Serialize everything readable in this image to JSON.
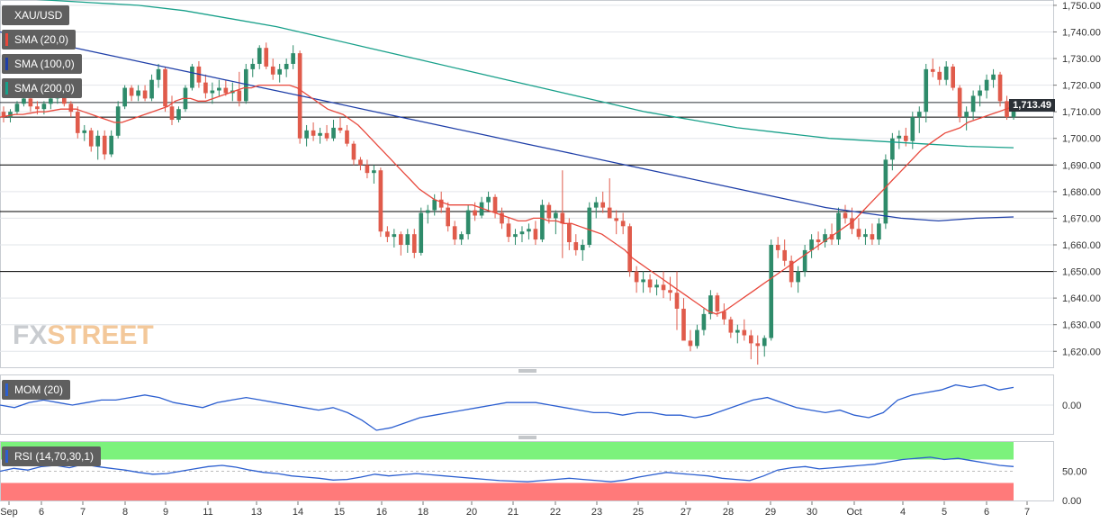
{
  "instrument": "XAU/USD",
  "overlay_labels": [
    {
      "key": "price",
      "label": "XAU/USD",
      "color": "#5f5f5f"
    },
    {
      "key": "sma20",
      "label": "SMA (20,0)",
      "color": "#e8483c"
    },
    {
      "key": "sma100",
      "label": "SMA (100,0)",
      "color": "#1f3fa8"
    },
    {
      "key": "sma200",
      "label": "SMA (200,0)",
      "color": "#18a08a"
    }
  ],
  "mom_label": "MOM (20)",
  "rsi_label": "RSI (14,70,30,1)",
  "last_price": "1,713.49",
  "watermark": {
    "part1": "FX",
    "part2": "STREET"
  },
  "colors": {
    "bull": "#2e8b6a",
    "bear": "#e05b4b",
    "sma20": "#e8483c",
    "sma100": "#1f3fa8",
    "sma200": "#18a08a",
    "mom": "#2c5fd0",
    "rsi": "#2c5fd0",
    "rsi_overbought": "#7cf27c",
    "rsi_oversold": "#ff7a7a",
    "grid": "#e2e5ea"
  },
  "chart_data": {
    "type": "candlestick",
    "y_axis_ticks": [
      1750,
      1740,
      1730,
      1720,
      1710,
      1700,
      1690,
      1680,
      1670,
      1660,
      1650,
      1640,
      1630,
      1620
    ],
    "y_tick_labels": [
      "1,750.00",
      "1,740.00",
      "1,730.00",
      "1,720.00",
      "1,710.00",
      "1,700.00",
      "1,690.00",
      "1,680.00",
      "1,670.00",
      "1,660.00",
      "1,650.00",
      "1,640.00",
      "1,630.00",
      "1,620.00"
    ],
    "ylim": [
      1614,
      1752
    ],
    "horizontal_levels": [
      1713.49,
      1708,
      1690,
      1672.5,
      1650
    ],
    "x_labels": [
      "Sep",
      "6",
      "7",
      "8",
      "9",
      "11",
      "13",
      "14",
      "15",
      "16",
      "18",
      "20",
      "21",
      "22",
      "23",
      "25",
      "27",
      "28",
      "29",
      "30",
      "Oct",
      "4",
      "5",
      "6",
      "7"
    ],
    "candles_ohlc": [
      [
        1710,
        1712,
        1706,
        1708
      ],
      [
        1708,
        1711,
        1706,
        1710
      ],
      [
        1710,
        1714,
        1709,
        1713
      ],
      [
        1713,
        1716,
        1712,
        1715
      ],
      [
        1715,
        1716,
        1710,
        1712
      ],
      [
        1712,
        1714,
        1709,
        1711
      ],
      [
        1711,
        1714,
        1709,
        1713
      ],
      [
        1713,
        1716,
        1711,
        1715
      ],
      [
        1715,
        1718,
        1713,
        1716
      ],
      [
        1716,
        1717,
        1712,
        1713
      ],
      [
        1713,
        1714,
        1708,
        1710
      ],
      [
        1710,
        1712,
        1700,
        1702
      ],
      [
        1702,
        1705,
        1699,
        1703
      ],
      [
        1703,
        1704,
        1695,
        1697
      ],
      [
        1697,
        1703,
        1692,
        1701
      ],
      [
        1701,
        1703,
        1692,
        1694
      ],
      [
        1694,
        1703,
        1693,
        1701
      ],
      [
        1701,
        1714,
        1700,
        1712
      ],
      [
        1712,
        1720,
        1711,
        1719
      ],
      [
        1719,
        1720,
        1714,
        1716
      ],
      [
        1716,
        1720,
        1714,
        1718
      ],
      [
        1718,
        1720,
        1714,
        1715
      ],
      [
        1715,
        1724,
        1714,
        1722
      ],
      [
        1722,
        1728,
        1719,
        1726
      ],
      [
        1726,
        1727,
        1710,
        1712
      ],
      [
        1712,
        1716,
        1705,
        1707
      ],
      [
        1707,
        1712,
        1706,
        1711
      ],
      [
        1711,
        1720,
        1710,
        1719
      ],
      [
        1719,
        1728,
        1718,
        1727
      ],
      [
        1727,
        1729,
        1719,
        1721
      ],
      [
        1721,
        1724,
        1715,
        1717
      ],
      [
        1717,
        1721,
        1713,
        1718
      ],
      [
        1718,
        1722,
        1716,
        1719
      ],
      [
        1719,
        1722,
        1716,
        1717
      ],
      [
        1717,
        1721,
        1714,
        1718
      ],
      [
        1718,
        1725,
        1712,
        1714
      ],
      [
        1714,
        1728,
        1713,
        1726
      ],
      [
        1726,
        1730,
        1723,
        1728
      ],
      [
        1728,
        1735,
        1726,
        1734
      ],
      [
        1734,
        1736,
        1726,
        1727
      ],
      [
        1727,
        1730,
        1722,
        1724
      ],
      [
        1724,
        1728,
        1721,
        1726
      ],
      [
        1726,
        1730,
        1723,
        1728
      ],
      [
        1728,
        1735,
        1726,
        1732
      ],
      [
        1732,
        1733,
        1698,
        1700
      ],
      [
        1700,
        1705,
        1697,
        1703
      ],
      [
        1703,
        1706,
        1699,
        1701
      ],
      [
        1701,
        1704,
        1698,
        1702
      ],
      [
        1702,
        1705,
        1699,
        1700
      ],
      [
        1700,
        1707,
        1699,
        1704
      ],
      [
        1704,
        1708,
        1702,
        1703
      ],
      [
        1703,
        1705,
        1697,
        1698
      ],
      [
        1698,
        1699,
        1690,
        1692
      ],
      [
        1692,
        1693,
        1688,
        1690
      ],
      [
        1690,
        1692,
        1685,
        1687
      ],
      [
        1687,
        1690,
        1683,
        1688
      ],
      [
        1688,
        1689,
        1663,
        1665
      ],
      [
        1665,
        1667,
        1661,
        1663
      ],
      [
        1663,
        1666,
        1659,
        1664
      ],
      [
        1664,
        1665,
        1656,
        1660
      ],
      [
        1660,
        1666,
        1657,
        1664
      ],
      [
        1664,
        1666,
        1655,
        1657
      ],
      [
        1657,
        1674,
        1656,
        1672
      ],
      [
        1672,
        1675,
        1668,
        1673
      ],
      [
        1673,
        1679,
        1671,
        1677
      ],
      [
        1677,
        1680,
        1672,
        1674
      ],
      [
        1674,
        1676,
        1665,
        1667
      ],
      [
        1667,
        1669,
        1660,
        1662
      ],
      [
        1662,
        1665,
        1660,
        1664
      ],
      [
        1664,
        1675,
        1662,
        1673
      ],
      [
        1673,
        1676,
        1669,
        1671
      ],
      [
        1671,
        1678,
        1670,
        1676
      ],
      [
        1676,
        1680,
        1673,
        1678
      ],
      [
        1678,
        1679,
        1670,
        1672
      ],
      [
        1672,
        1674,
        1666,
        1668
      ],
      [
        1668,
        1670,
        1661,
        1663
      ],
      [
        1663,
        1666,
        1660,
        1664
      ],
      [
        1664,
        1667,
        1661,
        1665
      ],
      [
        1665,
        1668,
        1662,
        1666
      ],
      [
        1666,
        1669,
        1660,
        1662
      ],
      [
        1662,
        1677,
        1661,
        1675
      ],
      [
        1675,
        1676,
        1668,
        1670
      ],
      [
        1670,
        1673,
        1664,
        1672
      ],
      [
        1672,
        1688,
        1655,
        1668
      ],
      [
        1668,
        1670,
        1658,
        1661
      ],
      [
        1661,
        1664,
        1656,
        1658
      ],
      [
        1658,
        1662,
        1654,
        1660
      ],
      [
        1660,
        1676,
        1659,
        1674
      ],
      [
        1674,
        1678,
        1670,
        1676
      ],
      [
        1676,
        1680,
        1672,
        1674
      ],
      [
        1674,
        1685,
        1672,
        1670
      ],
      [
        1670,
        1673,
        1664,
        1669
      ],
      [
        1669,
        1672,
        1664,
        1667
      ],
      [
        1667,
        1668,
        1648,
        1650
      ],
      [
        1650,
        1652,
        1642,
        1646
      ],
      [
        1646,
        1650,
        1642,
        1647
      ],
      [
        1647,
        1649,
        1642,
        1644
      ],
      [
        1644,
        1647,
        1641,
        1645
      ],
      [
        1645,
        1650,
        1640,
        1643
      ],
      [
        1643,
        1648,
        1639,
        1642
      ],
      [
        1642,
        1650,
        1628,
        1636
      ],
      [
        1636,
        1640,
        1628,
        1624
      ],
      [
        1624,
        1628,
        1620,
        1622
      ],
      [
        1622,
        1630,
        1621,
        1628
      ],
      [
        1628,
        1636,
        1626,
        1634
      ],
      [
        1634,
        1643,
        1632,
        1641
      ],
      [
        1641,
        1642,
        1633,
        1635
      ],
      [
        1635,
        1638,
        1630,
        1632
      ],
      [
        1632,
        1633,
        1625,
        1627
      ],
      [
        1627,
        1630,
        1623,
        1628
      ],
      [
        1628,
        1632,
        1624,
        1626
      ],
      [
        1626,
        1628,
        1617,
        1623
      ],
      [
        1623,
        1626,
        1615,
        1622
      ],
      [
        1622,
        1626,
        1618,
        1625
      ],
      [
        1625,
        1662,
        1624,
        1660
      ],
      [
        1660,
        1663,
        1655,
        1658
      ],
      [
        1658,
        1662,
        1652,
        1654
      ],
      [
        1654,
        1656,
        1644,
        1646
      ],
      [
        1646,
        1652,
        1642,
        1650
      ],
      [
        1650,
        1660,
        1648,
        1658
      ],
      [
        1658,
        1664,
        1655,
        1662
      ],
      [
        1662,
        1665,
        1658,
        1661
      ],
      [
        1661,
        1666,
        1659,
        1664
      ],
      [
        1664,
        1668,
        1660,
        1662
      ],
      [
        1662,
        1674,
        1660,
        1672
      ],
      [
        1672,
        1675,
        1668,
        1670
      ],
      [
        1670,
        1674,
        1664,
        1666
      ],
      [
        1666,
        1670,
        1662,
        1663
      ],
      [
        1663,
        1666,
        1660,
        1664
      ],
      [
        1664,
        1668,
        1660,
        1662
      ],
      [
        1662,
        1670,
        1660,
        1668
      ],
      [
        1668,
        1694,
        1666,
        1692
      ],
      [
        1692,
        1702,
        1688,
        1700
      ],
      [
        1700,
        1703,
        1696,
        1701
      ],
      [
        1701,
        1704,
        1697,
        1699
      ],
      [
        1699,
        1710,
        1696,
        1708
      ],
      [
        1708,
        1712,
        1702,
        1710
      ],
      [
        1710,
        1728,
        1706,
        1726
      ],
      [
        1726,
        1730,
        1723,
        1725
      ],
      [
        1725,
        1727,
        1720,
        1722
      ],
      [
        1722,
        1729,
        1720,
        1727
      ],
      [
        1727,
        1728,
        1718,
        1719
      ],
      [
        1719,
        1720,
        1706,
        1708
      ],
      [
        1708,
        1712,
        1703,
        1710
      ],
      [
        1710,
        1718,
        1707,
        1716
      ],
      [
        1716,
        1720,
        1712,
        1718
      ],
      [
        1718,
        1724,
        1715,
        1722
      ],
      [
        1722,
        1726,
        1719,
        1724
      ],
      [
        1724,
        1725,
        1712,
        1714
      ],
      [
        1714,
        1716,
        1707,
        1708
      ],
      [
        1708,
        1714,
        1707,
        1713.49
      ]
    ],
    "sma20": [
      1708,
      1708.5,
      1709,
      1709,
      1709.5,
      1710,
      1710,
      1710.5,
      1711,
      1711,
      1711,
      1710,
      1709,
      1708,
      1707,
      1706,
      1706,
      1707,
      1708,
      1709,
      1710,
      1711,
      1712,
      1714,
      1715,
      1715,
      1714,
      1714,
      1715,
      1716,
      1717,
      1718,
      1719,
      1719,
      1720,
      1720,
      1720,
      1720,
      1720,
      1719,
      1717,
      1715,
      1713,
      1711,
      1710,
      1709,
      1707,
      1705,
      1702,
      1699,
      1696,
      1693,
      1690,
      1687,
      1684,
      1681,
      1679,
      1677,
      1676,
      1675,
      1675,
      1675,
      1675,
      1674,
      1673,
      1672,
      1671,
      1670,
      1669,
      1669,
      1670,
      1670,
      1669,
      1669,
      1668,
      1668,
      1667,
      1666,
      1665,
      1664,
      1662,
      1660,
      1658,
      1655,
      1653,
      1651,
      1649,
      1647,
      1645,
      1643,
      1641,
      1639,
      1637,
      1635,
      1634,
      1635,
      1637,
      1639,
      1641,
      1643,
      1645,
      1647,
      1649,
      1651,
      1653,
      1655,
      1657,
      1659,
      1661,
      1663,
      1665,
      1667,
      1669,
      1672,
      1675,
      1678,
      1681,
      1684,
      1687,
      1690,
      1693,
      1696,
      1698,
      1700,
      1702,
      1703,
      1704,
      1706,
      1707,
      1708,
      1709,
      1710,
      1711,
      1712
    ],
    "sma100": [
      1740,
      1737,
      1734,
      1731,
      1728,
      1725,
      1722,
      1719,
      1716,
      1713,
      1710,
      1707,
      1704,
      1701,
      1698,
      1695,
      1692,
      1689,
      1686,
      1683,
      1680,
      1677,
      1674,
      1672,
      1670,
      1669,
      1670,
      1670.5
    ],
    "sma200": [
      1753,
      1752,
      1751,
      1750,
      1748,
      1745,
      1742,
      1738,
      1734,
      1730,
      1726,
      1722,
      1718,
      1714,
      1710,
      1707,
      1704,
      1702,
      1700,
      1699,
      1698,
      1697,
      1696.5
    ],
    "mom_values": [
      0,
      -1,
      1,
      2,
      1,
      0,
      1,
      2,
      2,
      3,
      4,
      3,
      1,
      0,
      -1,
      1,
      2,
      3,
      2,
      1,
      0,
      -1,
      -2,
      -1,
      -3,
      -6,
      -10,
      -9,
      -7,
      -5,
      -4,
      -3,
      -2,
      -1,
      0,
      1,
      1,
      1,
      0,
      -1,
      -2,
      -3,
      -3,
      -4,
      -3,
      -3,
      -4,
      -4,
      -5,
      -4,
      -2,
      0,
      2,
      3,
      1,
      -1,
      -2,
      -3,
      -2,
      -4,
      -5,
      -3,
      2,
      4,
      5,
      6,
      8,
      7,
      8,
      6,
      7
    ],
    "rsi_values": [
      50,
      55,
      52,
      58,
      60,
      56,
      62,
      58,
      55,
      52,
      48,
      45,
      46,
      50,
      54,
      58,
      60,
      57,
      52,
      48,
      46,
      42,
      40,
      38,
      35,
      36,
      40,
      45,
      42,
      44,
      46,
      44,
      42,
      40,
      38,
      36,
      34,
      33,
      32,
      34,
      36,
      38,
      36,
      34,
      32,
      35,
      40,
      44,
      48,
      46,
      44,
      42,
      38,
      36,
      34,
      42,
      52,
      56,
      58,
      54,
      56,
      58,
      60,
      62,
      66,
      70,
      72,
      74,
      70,
      72,
      68,
      64,
      60,
      58
    ]
  }
}
